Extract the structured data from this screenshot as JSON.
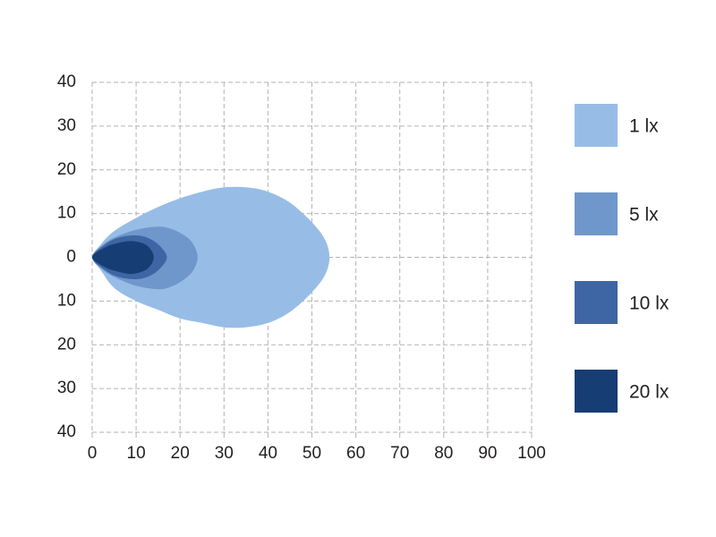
{
  "chart_data": {
    "type": "contour",
    "xlim": [
      0,
      100
    ],
    "ylim": [
      -40,
      40
    ],
    "xticks": [
      0,
      10,
      20,
      30,
      40,
      50,
      60,
      70,
      80,
      90,
      100
    ],
    "yticks": [
      {
        "value": -40,
        "label": "40"
      },
      {
        "value": -30,
        "label": "30"
      },
      {
        "value": -20,
        "label": "20"
      },
      {
        "value": -10,
        "label": "10"
      },
      0,
      10,
      20,
      30,
      40
    ],
    "grid": true,
    "legend": "right",
    "series": [
      {
        "name": "1 lx",
        "color": "#97bde6",
        "x": [
          0,
          2,
          5,
          10,
          15,
          20,
          25,
          30,
          35,
          40,
          45,
          50,
          53,
          54,
          53,
          50,
          45,
          40,
          35,
          30,
          25,
          20,
          15,
          10,
          5,
          2
        ],
        "values": [
          0,
          3,
          6,
          9,
          11.5,
          13.5,
          15,
          16,
          16,
          15,
          12.5,
          8,
          4,
          0,
          -4,
          -8,
          -12.5,
          -15,
          -16,
          -16,
          -15,
          -14,
          -12,
          -10,
          -7,
          -3
        ]
      },
      {
        "name": "5 lx",
        "color": "#6f97cc",
        "x": [
          0,
          2,
          5,
          10,
          15,
          18,
          21,
          23,
          24,
          23,
          21,
          18,
          15,
          10,
          5,
          2
        ],
        "values": [
          0,
          2.5,
          4.5,
          6.3,
          7,
          6.5,
          5,
          3,
          0,
          -3,
          -5,
          -6.7,
          -7.3,
          -6.5,
          -4.5,
          -2.5
        ]
      },
      {
        "name": "10 lx",
        "color": "#3e66a4",
        "x": [
          0,
          3,
          6,
          10,
          13,
          15.5,
          17,
          15.5,
          13,
          10,
          6,
          3
        ],
        "values": [
          0,
          3,
          4.5,
          5,
          4.3,
          2.5,
          0,
          -2.5,
          -4.3,
          -5,
          -4.5,
          -3
        ]
      },
      {
        "name": "20 lx",
        "color": "#163d74",
        "x": [
          0,
          3,
          6,
          9,
          12,
          13.5,
          14,
          13.5,
          12,
          9,
          6,
          3
        ],
        "values": [
          0,
          2.3,
          3.3,
          3.7,
          3,
          1.5,
          0,
          -1.5,
          -3,
          -3.8,
          -3.3,
          -2.3
        ]
      }
    ]
  }
}
